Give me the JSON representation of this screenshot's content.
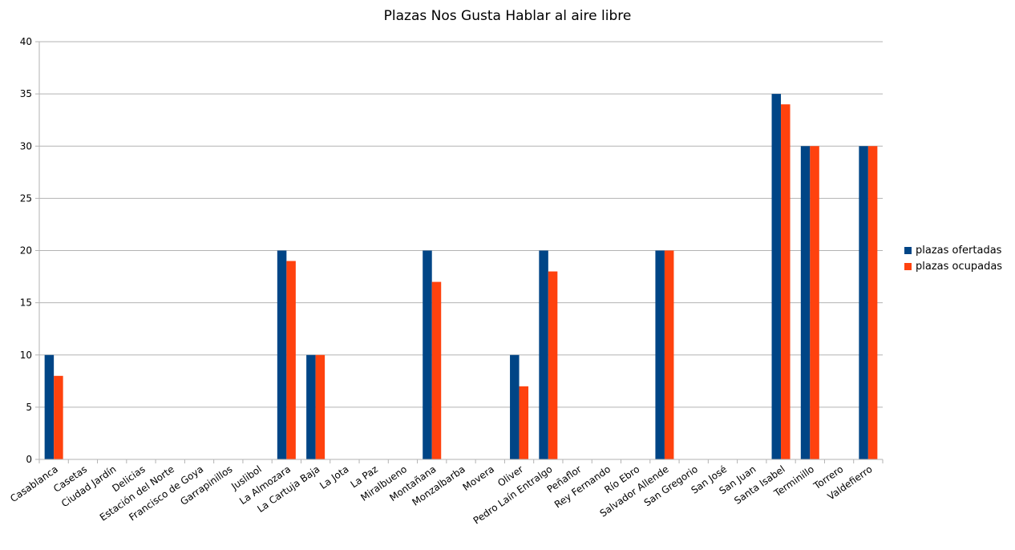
{
  "chart_data": {
    "type": "bar",
    "title": "Plazas Nos Gusta Hablar al aire libre",
    "xlabel": "",
    "ylabel": "",
    "ylim": [
      0,
      40
    ],
    "yticks": [
      0,
      5,
      10,
      15,
      20,
      25,
      30,
      35,
      40
    ],
    "grid": true,
    "legend_position": "right",
    "categories": [
      "Casablanca",
      "Casetas",
      "Ciudad Jardín",
      "Delicias",
      "Estación del Norte",
      "Francisco de Goya",
      "Garrapinillos",
      "Juslibol",
      "La Almozara",
      "La Cartuja Baja",
      "La Jota",
      "La Paz",
      "Miralbueno",
      "Montañana",
      "Monzalbarba",
      "Movera",
      "Oliver",
      "Pedro Laín Entralgo",
      "Peñaflor",
      "Rey Fernando",
      "Río Ebro",
      "Salvador Allende",
      "San Gregorio",
      "San José",
      "San Juan",
      "Santa Isabel",
      "Terminillo",
      "Torrero",
      "Valdefierro"
    ],
    "series": [
      {
        "name": "plazas ofertadas",
        "color": "#004586",
        "values": [
          10,
          0,
          0,
          0,
          0,
          0,
          0,
          0,
          20,
          10,
          0,
          0,
          0,
          20,
          0,
          0,
          10,
          20,
          0,
          0,
          0,
          20,
          0,
          0,
          0,
          35,
          30,
          0,
          30
        ]
      },
      {
        "name": "plazas ocupadas",
        "color": "#ff420e",
        "values": [
          8,
          0,
          0,
          0,
          0,
          0,
          0,
          0,
          19,
          10,
          0,
          0,
          0,
          17,
          0,
          0,
          7,
          18,
          0,
          0,
          0,
          20,
          0,
          0,
          0,
          34,
          30,
          0,
          30
        ]
      }
    ]
  }
}
